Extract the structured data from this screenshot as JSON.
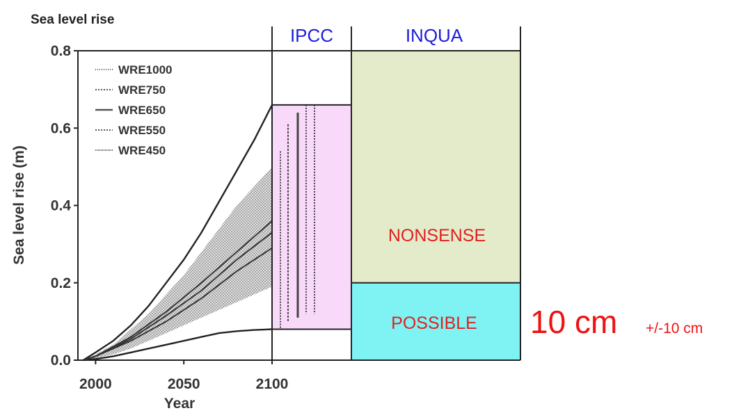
{
  "chart_data": {
    "type": "line",
    "title": "Sea level rise",
    "xlabel": "Year",
    "ylabel": "Sea level rise (m)",
    "xlim": [
      1990,
      2100
    ],
    "ylim": [
      0,
      0.8
    ],
    "x_ticks": [
      "2000",
      "2050",
      "2100"
    ],
    "y_ticks": [
      "0.0",
      "0.2",
      "0.4",
      "0.6",
      "0.8"
    ],
    "legend": [
      "WRE1000",
      "WRE750",
      "WRE650",
      "WRE550",
      "WRE450"
    ],
    "legend_position": "top-left",
    "envelope": {
      "x": [
        1993,
        2000,
        2010,
        2020,
        2030,
        2040,
        2050,
        2060,
        2070,
        2080,
        2090,
        2100
      ],
      "upper": [
        0.0,
        0.02,
        0.05,
        0.09,
        0.14,
        0.2,
        0.26,
        0.33,
        0.41,
        0.49,
        0.57,
        0.66
      ],
      "lower": [
        0.0,
        0.003,
        0.01,
        0.02,
        0.03,
        0.04,
        0.05,
        0.06,
        0.07,
        0.075,
        0.078,
        0.08
      ]
    },
    "shaded_band": {
      "x": [
        1993,
        2000,
        2010,
        2020,
        2030,
        2040,
        2050,
        2060,
        2070,
        2080,
        2090,
        2100
      ],
      "upper": [
        0.0,
        0.015,
        0.04,
        0.08,
        0.12,
        0.17,
        0.22,
        0.28,
        0.34,
        0.4,
        0.45,
        0.5
      ],
      "lower": [
        0.0,
        0.005,
        0.015,
        0.03,
        0.05,
        0.07,
        0.09,
        0.11,
        0.13,
        0.15,
        0.17,
        0.19
      ]
    },
    "mean_lines": [
      {
        "x": [
          1993,
          2000,
          2020,
          2040,
          2060,
          2080,
          2100
        ],
        "values": [
          0.0,
          0.01,
          0.05,
          0.1,
          0.16,
          0.23,
          0.29
        ]
      },
      {
        "x": [
          1993,
          2000,
          2020,
          2040,
          2060,
          2080,
          2100
        ],
        "values": [
          0.0,
          0.01,
          0.055,
          0.115,
          0.18,
          0.26,
          0.33
        ]
      },
      {
        "x": [
          1993,
          2000,
          2020,
          2040,
          2060,
          2080,
          2100
        ],
        "values": [
          0.0,
          0.01,
          0.06,
          0.125,
          0.2,
          0.28,
          0.36
        ]
      }
    ],
    "ipcc_range": {
      "low": 0.08,
      "high": 0.66,
      "color": "#f9d9f9"
    },
    "ipcc_bars": [
      {
        "name": "WRE450",
        "low": 0.08,
        "high": 0.54
      },
      {
        "name": "WRE550",
        "low": 0.1,
        "high": 0.61
      },
      {
        "name": "WRE650",
        "low": 0.11,
        "high": 0.64
      },
      {
        "name": "WRE750",
        "low": 0.12,
        "high": 0.66
      },
      {
        "name": "WRE1000",
        "low": 0.12,
        "high": 0.66
      }
    ],
    "inqua_nonsense": {
      "low": 0.2,
      "high": 0.8,
      "color": "#e3ebcb"
    },
    "inqua_possible": {
      "low": 0.0,
      "high": 0.2,
      "color": "#7ff3f3"
    }
  },
  "labels": {
    "title": "Sea level rise",
    "ipcc_header": "IPCC",
    "inqua_header": "INQUA",
    "nonsense": "NONSENSE",
    "possible": "POSSIBLE",
    "estimate": "10 cm",
    "estimate_range": "+/-10 cm"
  },
  "colors": {
    "header_blue": "#1c1cdc",
    "zone_red": "#e02020",
    "estimate_red": "#ee1111"
  }
}
